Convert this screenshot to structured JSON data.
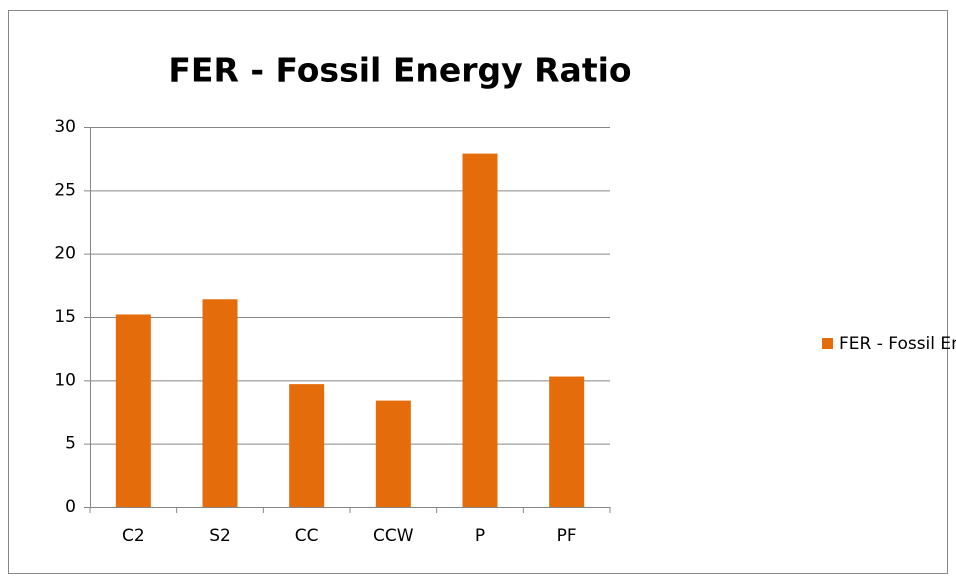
{
  "chart_data": {
    "type": "bar",
    "title": "FER - Fossil Energy Ratio",
    "categories": [
      "C2",
      "S2",
      "CC",
      "CCW",
      "P",
      "PF"
    ],
    "series": [
      {
        "name": "FER - Fossil Energy Ratio",
        "color": "#e46c0a",
        "values": [
          15.2,
          16.4,
          9.7,
          8.4,
          27.9,
          10.3
        ]
      }
    ],
    "ylim": [
      0,
      30
    ],
    "yticks": [
      0,
      5,
      10,
      15,
      20,
      25,
      30
    ],
    "grid": true,
    "legend": "right"
  }
}
